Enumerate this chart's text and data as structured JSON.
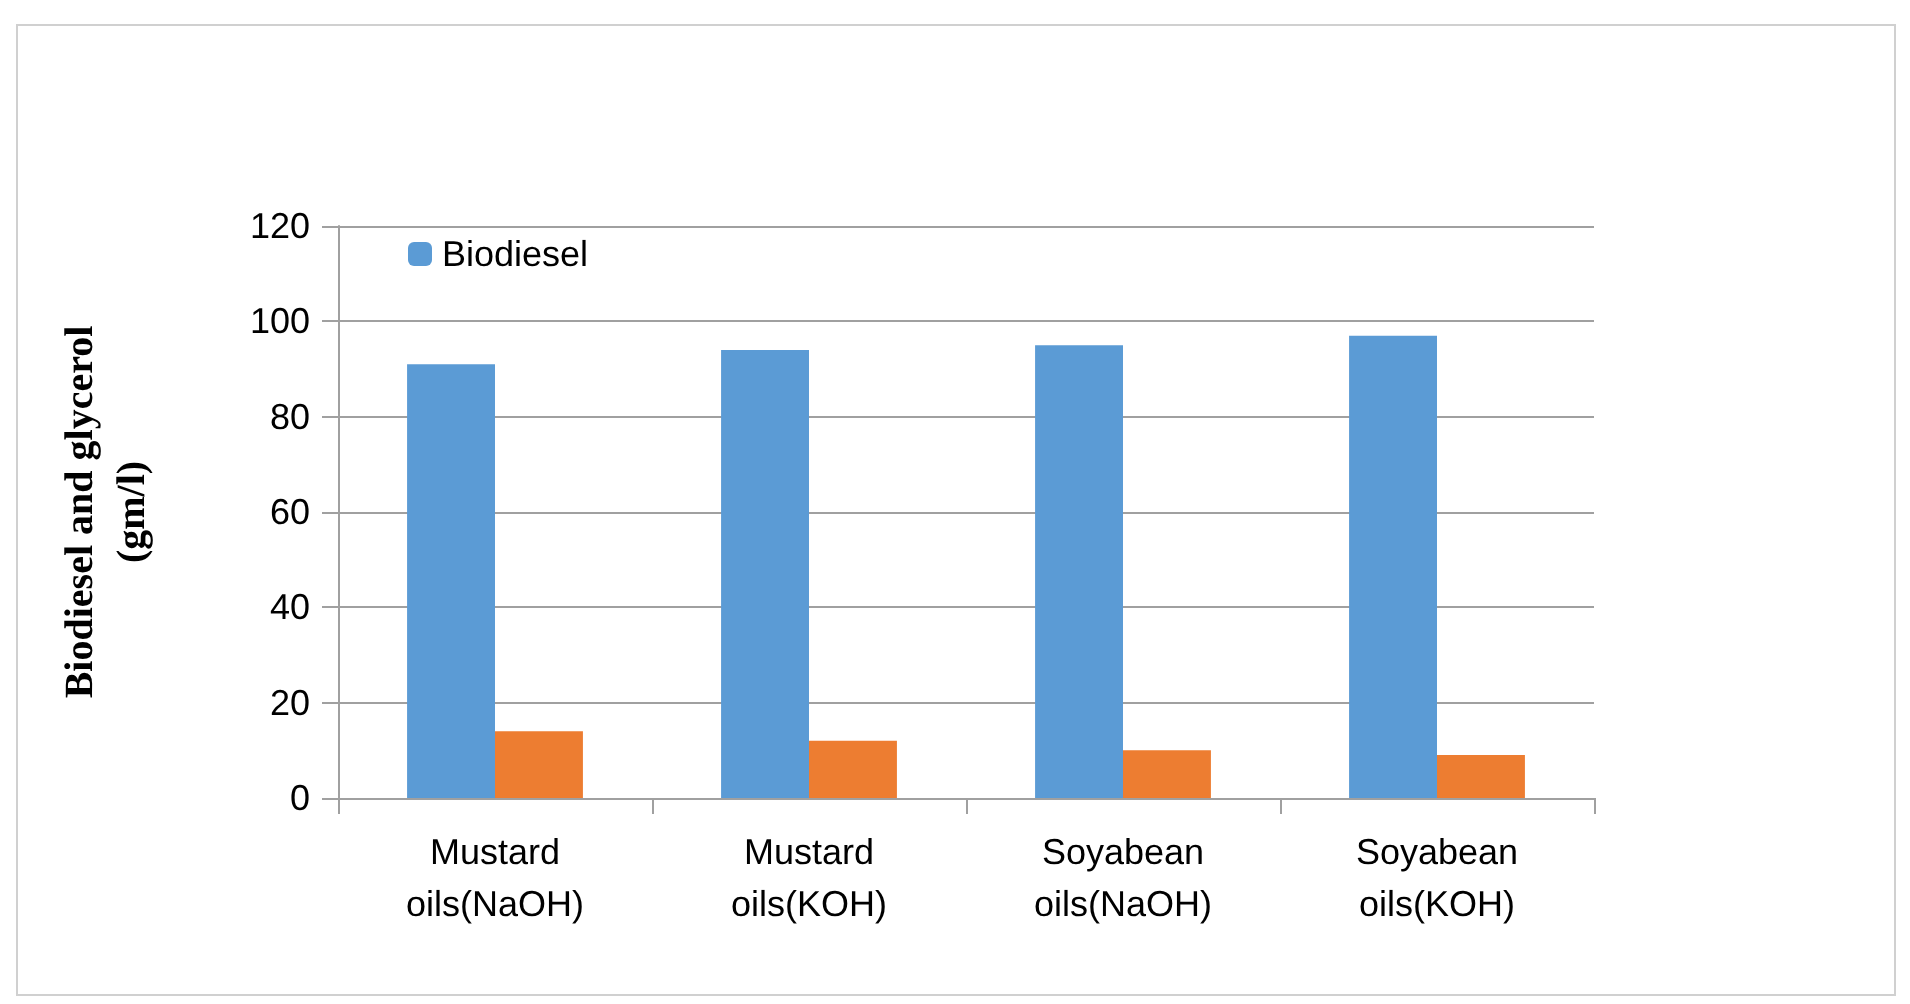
{
  "chart_data": {
    "type": "bar",
    "ylabel": "Biodiesel and glycerol\n(gm/l)",
    "categories": [
      "Mustard\noils(NaOH)",
      "Mustard\noils(KOH)",
      "Soyabean\noils(NaOH)",
      "Soyabean\noils(KOH)"
    ],
    "series": [
      {
        "name": "Biodiesel",
        "color": "#5b9bd5",
        "values": [
          91,
          94,
          95,
          97
        ]
      },
      {
        "color": "#ed7d31",
        "values": [
          14,
          12,
          10,
          9
        ]
      }
    ],
    "ylim": [
      0,
      120
    ],
    "yticks": [
      0,
      20,
      40,
      60,
      80,
      100,
      120
    ],
    "grid": "y",
    "legend": "top left"
  }
}
